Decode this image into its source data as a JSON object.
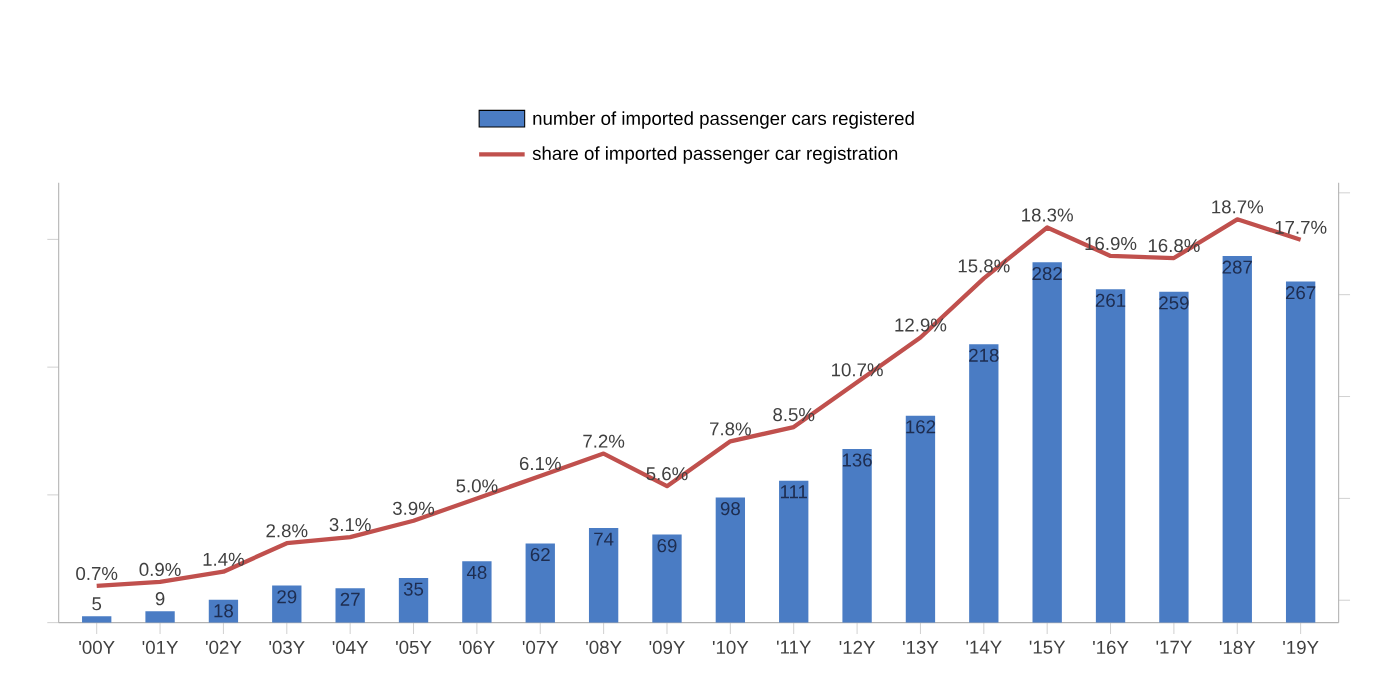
{
  "chart_data": {
    "type": "bar",
    "categories": [
      "'00Y",
      "'01Y",
      "'02Y",
      "'03Y",
      "'04Y",
      "'05Y",
      "'06Y",
      "'07Y",
      "'08Y",
      "'09Y",
      "'10Y",
      "'11Y",
      "'12Y",
      "'13Y",
      "'14Y",
      "'15Y",
      "'16Y",
      "'17Y",
      "'18Y",
      "'19Y"
    ],
    "series": [
      {
        "name": "number of imported passenger cars registered",
        "type": "bar",
        "color": "#4a7cc4",
        "values": [
          5,
          9,
          18,
          29,
          27,
          35,
          48,
          62,
          74,
          69,
          98,
          111,
          136,
          162,
          218,
          282,
          261,
          259,
          287,
          267
        ],
        "value_labels": [
          "5",
          "9",
          "18",
          "29",
          "27",
          "35",
          "48",
          "62",
          "74",
          "69",
          "98",
          "111",
          "136",
          "162",
          "218",
          "282",
          "261",
          "259",
          "287",
          "267"
        ]
      },
      {
        "name": "share of imported passenger car registration",
        "type": "line",
        "axis": "y2",
        "color": "#c0504d",
        "values": [
          0.7,
          0.9,
          1.4,
          2.8,
          3.1,
          3.9,
          5.0,
          6.1,
          7.2,
          5.6,
          7.8,
          8.5,
          10.7,
          12.9,
          15.8,
          18.3,
          16.9,
          16.8,
          18.7,
          17.7
        ],
        "value_labels": [
          "0.7%",
          "0.9%",
          "1.4%",
          "2.8%",
          "3.1%",
          "3.9%",
          "5.0%",
          "6.1%",
          "7.2%",
          "5.6%",
          "7.8%",
          "8.5%",
          "10.7%",
          "12.9%",
          "15.8%",
          "18.3%",
          "16.9%",
          "16.8%",
          "18.7%",
          "17.7%"
        ]
      }
    ],
    "legend": "top",
    "tick_labels": "x",
    "marker": "none"
  }
}
